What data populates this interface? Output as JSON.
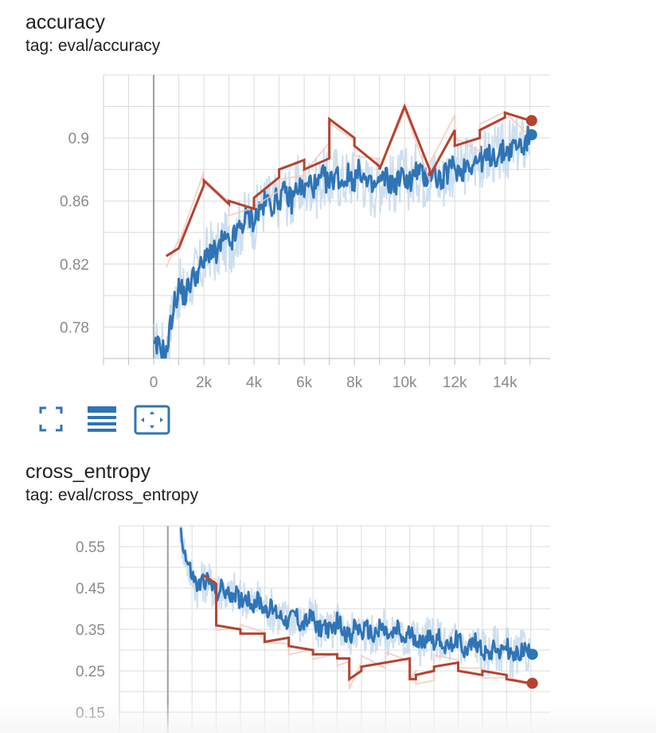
{
  "cards": [
    {
      "title": "accuracy",
      "tag": "tag: eval/accuracy"
    },
    {
      "title": "cross_entropy",
      "tag": "tag: eval/cross_entropy"
    }
  ],
  "toolbar_icons": [
    "fullscreen-icon",
    "data-table-icon",
    "fit-domain-icon"
  ],
  "colors": {
    "raw_blue": "#c6d9ec",
    "smoothed_blue": "#2f74b5",
    "raw_red": "#f4c9bf",
    "smoothed_red": "#b5432f",
    "grid": "#dcdcdc",
    "zero_line": "#9e9e9e"
  },
  "chart_data": [
    {
      "type": "line",
      "title": "accuracy",
      "xlabel": "",
      "ylabel": "",
      "xlim": [
        -2000,
        15800
      ],
      "ylim": [
        0.76,
        0.94
      ],
      "x_ticks": [
        0,
        2000,
        4000,
        6000,
        8000,
        10000,
        12000,
        14000
      ],
      "x_tick_labels": [
        "0",
        "2k",
        "4k",
        "6k",
        "8k",
        "10k",
        "12k",
        "14k"
      ],
      "y_ticks": [
        0.78,
        0.82,
        0.86,
        0.9
      ],
      "y_tick_labels": [
        "0.78",
        "0.82",
        "0.86",
        "0.9"
      ],
      "grid": true,
      "series": [
        {
          "color": "#2f74b5",
          "x": [
            0,
            250,
            500,
            750,
            1000,
            1250,
            1500,
            1750,
            2000,
            2250,
            2500,
            2750,
            3000,
            3250,
            3500,
            3750,
            4000,
            4250,
            4500,
            4750,
            5000,
            5250,
            5500,
            5750,
            6000,
            6250,
            6500,
            6750,
            7000,
            7250,
            7500,
            7750,
            8000,
            8250,
            8500,
            8750,
            9000,
            9250,
            9500,
            9750,
            10000,
            10250,
            10500,
            10750,
            11000,
            11250,
            11500,
            11750,
            12000,
            12250,
            12500,
            12750,
            13000,
            13250,
            13500,
            13750,
            14000,
            14250,
            14500,
            14750,
            15000
          ],
          "values": [
            0.765,
            0.768,
            0.762,
            0.79,
            0.805,
            0.8,
            0.81,
            0.815,
            0.82,
            0.83,
            0.825,
            0.835,
            0.832,
            0.838,
            0.845,
            0.85,
            0.848,
            0.855,
            0.86,
            0.858,
            0.862,
            0.865,
            0.86,
            0.87,
            0.866,
            0.872,
            0.868,
            0.875,
            0.87,
            0.878,
            0.872,
            0.876,
            0.874,
            0.88,
            0.87,
            0.868,
            0.872,
            0.875,
            0.87,
            0.873,
            0.876,
            0.872,
            0.88,
            0.874,
            0.878,
            0.876,
            0.872,
            0.88,
            0.882,
            0.878,
            0.885,
            0.884,
            0.887,
            0.886,
            0.89,
            0.888,
            0.892,
            0.893,
            0.896,
            0.895,
            0.902
          ]
        },
        {
          "color": "#b5432f",
          "x": [
            500,
            1000,
            1000,
            2000,
            2000,
            3000,
            3000,
            4000,
            4000,
            5000,
            5000,
            6000,
            6000,
            7000,
            7000,
            8000,
            8000,
            9000,
            9000,
            10000,
            10000,
            11000,
            11000,
            12000,
            12000,
            13000,
            13000,
            14000,
            14000,
            15000
          ],
          "values": [
            0.825,
            0.83,
            0.83,
            0.87,
            0.873,
            0.858,
            0.86,
            0.855,
            0.862,
            0.875,
            0.88,
            0.886,
            0.88,
            0.887,
            0.912,
            0.9,
            0.895,
            0.882,
            0.88,
            0.92,
            0.92,
            0.88,
            0.876,
            0.905,
            0.895,
            0.9,
            0.905,
            0.913,
            0.916,
            0.911
          ]
        }
      ]
    },
    {
      "type": "line",
      "title": "cross_entropy",
      "xlabel": "",
      "ylabel": "",
      "xlim": [
        -2000,
        15800
      ],
      "ylim": [
        0.1,
        0.6
      ],
      "y_ticks": [
        0.15,
        0.25,
        0.35,
        0.45,
        0.55
      ],
      "y_tick_labels": [
        "0.15",
        "0.25",
        "0.35",
        "0.45",
        "0.55"
      ],
      "grid": true,
      "series": [
        {
          "color": "#2f74b5",
          "x": [
            500,
            750,
            1000,
            1250,
            1500,
            1750,
            2000,
            2250,
            2500,
            2750,
            3000,
            3250,
            3500,
            3750,
            4000,
            4250,
            4500,
            4750,
            5000,
            5250,
            5500,
            5750,
            6000,
            6250,
            6500,
            6750,
            7000,
            7250,
            7500,
            7750,
            8000,
            8250,
            8500,
            8750,
            9000,
            9250,
            9500,
            9750,
            10000,
            10250,
            10500,
            10750,
            11000,
            11250,
            11500,
            11750,
            12000,
            12250,
            12500,
            12750,
            13000,
            13250,
            13500,
            13750,
            14000,
            14250,
            14500,
            14750,
            15000
          ],
          "values": [
            0.6,
            0.52,
            0.48,
            0.45,
            0.47,
            0.46,
            0.44,
            0.45,
            0.43,
            0.44,
            0.42,
            0.43,
            0.41,
            0.42,
            0.4,
            0.4,
            0.39,
            0.38,
            0.37,
            0.39,
            0.36,
            0.37,
            0.38,
            0.35,
            0.36,
            0.34,
            0.37,
            0.35,
            0.33,
            0.36,
            0.34,
            0.35,
            0.33,
            0.36,
            0.34,
            0.33,
            0.35,
            0.32,
            0.34,
            0.33,
            0.31,
            0.34,
            0.32,
            0.33,
            0.3,
            0.32,
            0.33,
            0.3,
            0.31,
            0.32,
            0.3,
            0.29,
            0.31,
            0.3,
            0.31,
            0.28,
            0.29,
            0.3,
            0.29
          ]
        },
        {
          "color": "#b5432f",
          "x": [
            1500,
            2000,
            2000,
            3000,
            3000,
            4000,
            4000,
            5000,
            5000,
            6000,
            6000,
            7000,
            7000,
            7500,
            7500,
            8000,
            8000,
            9000,
            9000,
            10000,
            10000,
            10250,
            10250,
            11000,
            11000,
            12000,
            12000,
            13000,
            13000,
            14000,
            14000,
            15000
          ],
          "values": [
            0.48,
            0.46,
            0.36,
            0.35,
            0.34,
            0.34,
            0.32,
            0.33,
            0.31,
            0.3,
            0.29,
            0.29,
            0.28,
            0.28,
            0.23,
            0.25,
            0.26,
            0.27,
            0.27,
            0.28,
            0.23,
            0.23,
            0.24,
            0.25,
            0.26,
            0.27,
            0.25,
            0.24,
            0.25,
            0.24,
            0.23,
            0.22
          ]
        }
      ]
    }
  ]
}
